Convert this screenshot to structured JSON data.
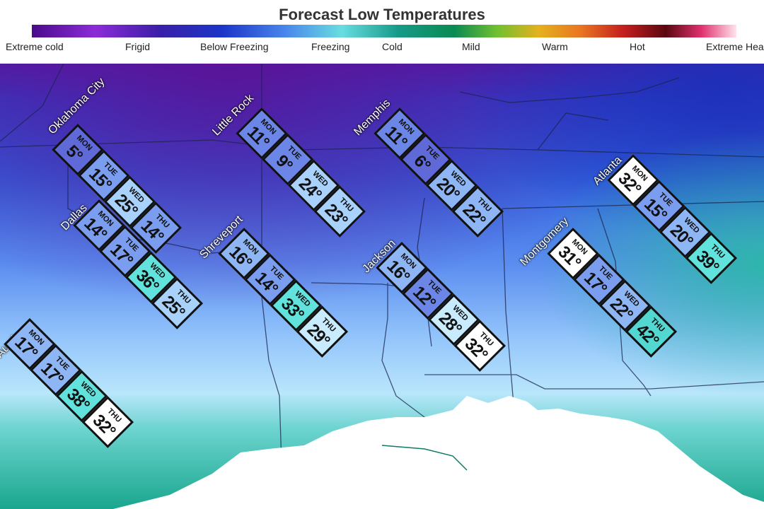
{
  "title": "Forecast Low Temperatures",
  "scale": {
    "labels": [
      "Extreme cold",
      "Frigid",
      "Below Freezing",
      "Freezing",
      "Cold",
      "Mild",
      "Warm",
      "Hot",
      "Extreme Heat"
    ]
  },
  "colors": {
    "level_5": "#5f69d8",
    "level_10": "#6b86e6",
    "level_15": "#7b9df0",
    "level_20": "#8eb6f4",
    "level_25": "#a8d1fb",
    "level_30": "#c8ecfd",
    "level_32": "#ffffff",
    "level_36": "#62e2dc",
    "level_40": "#53d7d1"
  },
  "cities": [
    {
      "name": "Oklahoma City",
      "days": [
        {
          "day": "MON",
          "temp": "5°"
        },
        {
          "day": "TUE",
          "temp": "15°"
        },
        {
          "day": "WED",
          "temp": "25°"
        },
        {
          "day": "THU",
          "temp": "14°"
        }
      ]
    },
    {
      "name": "Little Rock",
      "days": [
        {
          "day": "MON",
          "temp": "11°"
        },
        {
          "day": "TUE",
          "temp": "9°"
        },
        {
          "day": "WED",
          "temp": "24°"
        },
        {
          "day": "THU",
          "temp": "23°"
        }
      ]
    },
    {
      "name": "Memphis",
      "days": [
        {
          "day": "MON",
          "temp": "11°"
        },
        {
          "day": "TUE",
          "temp": "6°"
        },
        {
          "day": "WED",
          "temp": "20°"
        },
        {
          "day": "THU",
          "temp": "22°"
        }
      ]
    },
    {
      "name": "Atlanta",
      "days": [
        {
          "day": "MON",
          "temp": "32°"
        },
        {
          "day": "TUE",
          "temp": "15°"
        },
        {
          "day": "WED",
          "temp": "20°"
        },
        {
          "day": "THU",
          "temp": "39°"
        }
      ]
    },
    {
      "name": "Dallas",
      "days": [
        {
          "day": "MON",
          "temp": "14°"
        },
        {
          "day": "TUE",
          "temp": "17°"
        },
        {
          "day": "WED",
          "temp": "36°"
        },
        {
          "day": "THU",
          "temp": "25°"
        }
      ]
    },
    {
      "name": "Shreveport",
      "days": [
        {
          "day": "MON",
          "temp": "16°"
        },
        {
          "day": "TUE",
          "temp": "14°"
        },
        {
          "day": "WED",
          "temp": "33°"
        },
        {
          "day": "THU",
          "temp": "29°"
        }
      ]
    },
    {
      "name": "Jackson",
      "days": [
        {
          "day": "MON",
          "temp": "16°"
        },
        {
          "day": "TUE",
          "temp": "12°"
        },
        {
          "day": "WED",
          "temp": "28°"
        },
        {
          "day": "THU",
          "temp": "32°"
        }
      ]
    },
    {
      "name": "Montgomery",
      "days": [
        {
          "day": "MON",
          "temp": "31°"
        },
        {
          "day": "TUE",
          "temp": "17°"
        },
        {
          "day": "WED",
          "temp": "22°"
        },
        {
          "day": "THU",
          "temp": "42°"
        }
      ]
    },
    {
      "name": "Austin",
      "days": [
        {
          "day": "MON",
          "temp": "17°"
        },
        {
          "day": "TUE",
          "temp": "17°"
        },
        {
          "day": "WED",
          "temp": "38°"
        },
        {
          "day": "THU",
          "temp": "32°"
        }
      ]
    }
  ]
}
